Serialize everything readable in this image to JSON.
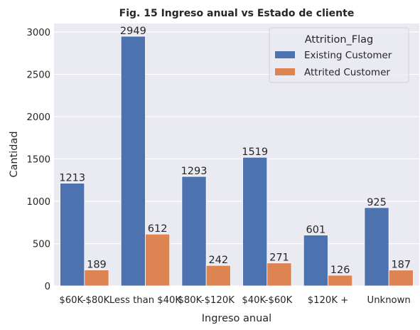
{
  "chart_data": {
    "type": "bar",
    "title": "Fig. 15 Ingreso anual vs Estado de cliente",
    "xlabel": "Ingreso anual",
    "ylabel": "Cantidad",
    "categories": [
      "$60K - $80K",
      "Less than $40K",
      "$80K - $120K",
      "$40K - $60K",
      "$120K +",
      "Unknown"
    ],
    "category_labels": [
      "$60K-$80K",
      "Less than $40K",
      "$80K-$120K",
      "$40K-$60K",
      "$120K +",
      "Unknown"
    ],
    "series": [
      {
        "name": "Existing Customer",
        "values": [
          1213,
          2949,
          1293,
          1519,
          601,
          925
        ],
        "color": "#4c72b0"
      },
      {
        "name": "Attrited Customer",
        "values": [
          189,
          612,
          242,
          271,
          126,
          187
        ],
        "color": "#dd8452"
      }
    ],
    "ylim": [
      0,
      3100
    ],
    "yticks": [
      0,
      500,
      1000,
      1500,
      2000,
      2500,
      3000
    ],
    "grid": true,
    "legend": {
      "title": "Attrition_Flag",
      "placement": "top-right"
    },
    "background": "#eaeaf2"
  }
}
